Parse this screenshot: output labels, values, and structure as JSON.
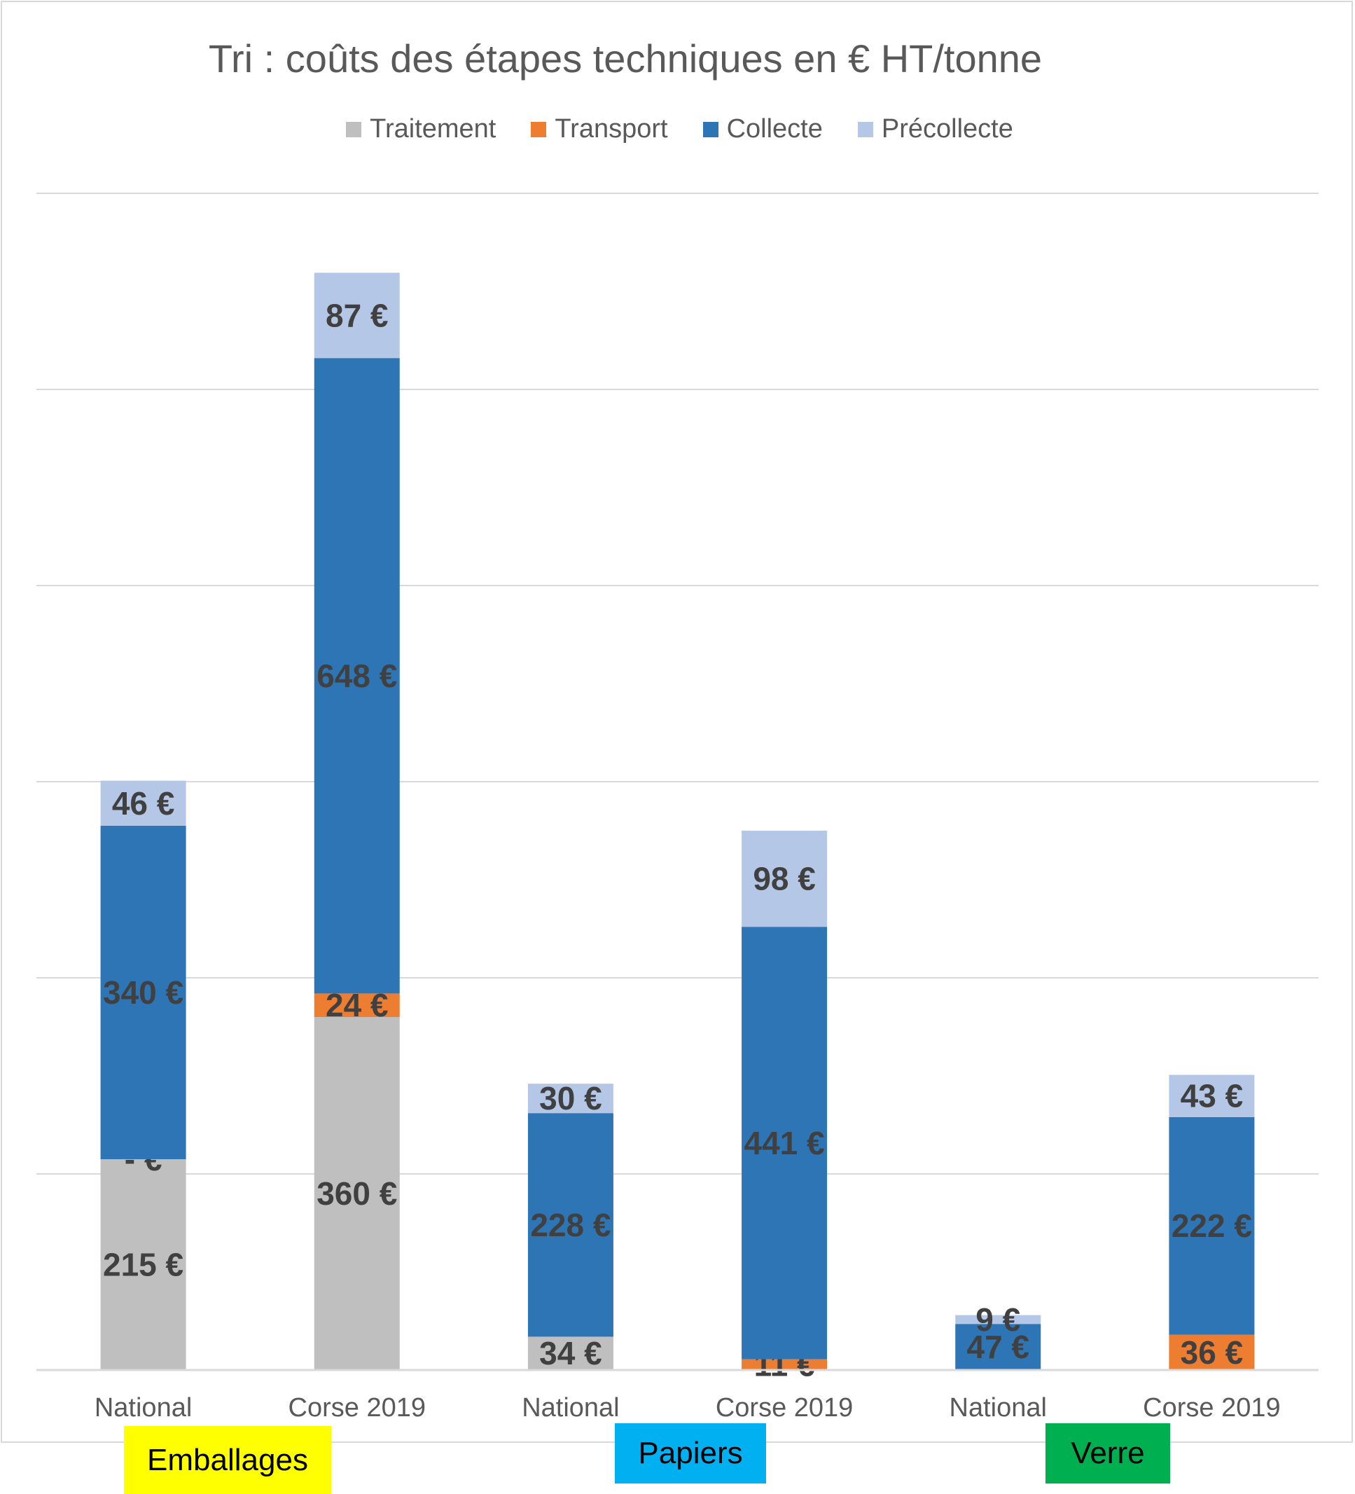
{
  "chart_data": {
    "type": "bar",
    "stacked": true,
    "title": "Tri : coûts des étapes techniques en € HT/tonne",
    "categories": [
      "National",
      "Corse 2019",
      "National",
      "Corse 2019",
      "National",
      "Corse 2019"
    ],
    "groups": [
      {
        "label": "Emballages",
        "color": "#ffff00"
      },
      {
        "label": "Papiers",
        "color": "#00b0f0"
      },
      {
        "label": "Verre",
        "color": "#00b050"
      }
    ],
    "series": [
      {
        "name": "Traitement",
        "color": "#bfbfbf",
        "values": [
          215,
          360,
          34,
          0,
          0,
          0
        ],
        "labels": [
          "215 €",
          "360 €",
          "34 €",
          null,
          null,
          null
        ]
      },
      {
        "name": "Transport",
        "color": "#ed7d31",
        "values": [
          0,
          24,
          0,
          11,
          0,
          36
        ],
        "labels": [
          "-   €",
          "24 €",
          null,
          "11 €",
          null,
          "36 €"
        ]
      },
      {
        "name": "Collecte",
        "color": "#2e75b6",
        "values": [
          340,
          648,
          228,
          441,
          47,
          222
        ],
        "labels": [
          "340 €",
          "648 €",
          "228 €",
          "441 €",
          "47 €",
          "222 €"
        ]
      },
      {
        "name": "Précollecte",
        "color": "#b4c7e7",
        "values": [
          46,
          87,
          30,
          98,
          9,
          43
        ],
        "labels": [
          "46 €",
          "87 €",
          "30 €",
          "98 €",
          "9 €",
          "43 €"
        ]
      }
    ],
    "legend_order": [
      "Traitement",
      "Transport",
      "Collecte",
      "Précollecte"
    ],
    "legend_position": "top",
    "ylim": [
      0,
      1200
    ],
    "grid": true
  }
}
